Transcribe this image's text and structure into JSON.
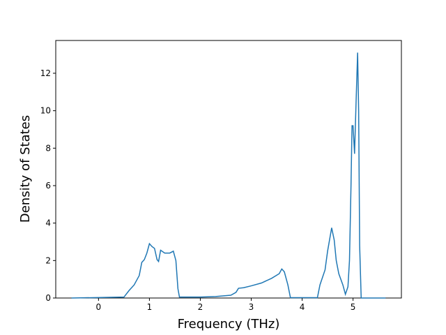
{
  "chart_data": {
    "type": "line",
    "xlabel": "Frequency (THz)",
    "ylabel": "Density of States",
    "x": [
      -0.53,
      0.5,
      0.6,
      0.7,
      0.8,
      0.85,
      0.9,
      0.95,
      1.0,
      1.05,
      1.1,
      1.15,
      1.18,
      1.22,
      1.3,
      1.4,
      1.47,
      1.52,
      1.56,
      1.59,
      2.0,
      2.3,
      2.6,
      2.7,
      2.75,
      2.85,
      3.0,
      3.2,
      3.4,
      3.55,
      3.6,
      3.65,
      3.72,
      3.77,
      4.3,
      4.35,
      4.45,
      4.5,
      4.58,
      4.63,
      4.67,
      4.72,
      4.8,
      4.85,
      4.9,
      4.93,
      4.96,
      4.98,
      5.0,
      5.03,
      5.06,
      5.09,
      5.11,
      5.13,
      5.16,
      5.64
    ],
    "series": [
      {
        "color": "#1f77b4",
        "values": [
          0,
          0.05,
          0.4,
          0.7,
          1.2,
          1.9,
          2.05,
          2.4,
          2.9,
          2.75,
          2.65,
          2.05,
          1.95,
          2.55,
          2.4,
          2.4,
          2.5,
          2.0,
          0.5,
          0.05,
          0.05,
          0.08,
          0.15,
          0.3,
          0.52,
          0.55,
          0.65,
          0.8,
          1.05,
          1.3,
          1.55,
          1.4,
          0.7,
          0.02,
          0.02,
          0.7,
          1.5,
          2.5,
          3.75,
          3.1,
          2.0,
          1.3,
          0.7,
          0.2,
          0.6,
          2.0,
          6.0,
          9.2,
          9.2,
          7.7,
          10.5,
          13.1,
          10,
          2.8,
          0,
          0
        ]
      }
    ],
    "xlim": [
      -0.84,
      5.95
    ],
    "ylim": [
      0,
      13.75
    ],
    "xticks": [
      0,
      1,
      2,
      3,
      4,
      5
    ],
    "yticks": [
      0,
      2,
      4,
      6,
      8,
      10,
      12
    ]
  }
}
